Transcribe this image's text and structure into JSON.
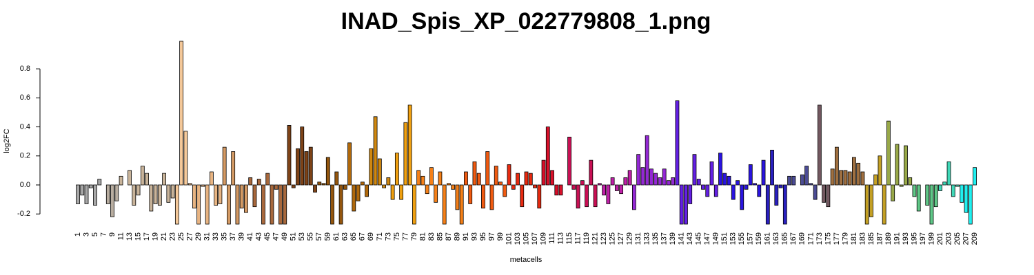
{
  "chart_data": {
    "type": "bar",
    "title": "INAD_Spis_XP_022779808_1.png",
    "x_label": "metacells",
    "y_label": "log2FC",
    "categories": [
      "1",
      null,
      "3",
      null,
      "5",
      null,
      "7",
      null,
      "9",
      null,
      "11",
      null,
      "13",
      null,
      "15",
      null,
      "17",
      null,
      "19",
      null,
      "21",
      null,
      "23",
      null,
      "25",
      null,
      "27",
      null,
      "29",
      null,
      "31",
      null,
      "33",
      null,
      "35",
      null,
      "37",
      null,
      "39",
      null,
      "41",
      null,
      "43",
      null,
      "45",
      null,
      "47",
      null,
      "49",
      null,
      "51",
      null,
      "53",
      null,
      "55",
      null,
      "57",
      null,
      "59",
      null,
      "61",
      null,
      "63",
      null,
      "65",
      null,
      "67",
      null,
      "69",
      null,
      "71",
      null,
      "73",
      null,
      "75",
      null,
      "77",
      null,
      "79",
      null,
      "81",
      null,
      "83",
      null,
      "85",
      null,
      "87",
      null,
      "89",
      null,
      "91",
      null,
      "93",
      null,
      "95",
      null,
      "97",
      null,
      "99",
      null,
      "101",
      null,
      "103",
      null,
      "105",
      null,
      "107",
      null,
      "109",
      null,
      "111",
      null,
      "113",
      null,
      "115",
      null,
      "117",
      null,
      "119",
      null,
      "121",
      null,
      "123",
      null,
      "125",
      null,
      "127",
      null,
      "129",
      null,
      "131",
      null,
      "133",
      null,
      "135",
      null,
      "137",
      null,
      "139",
      null,
      "141",
      null,
      "143",
      null,
      "145",
      null,
      "147",
      null,
      "149",
      null,
      "151",
      null,
      "153",
      null,
      "155",
      null,
      "157",
      null,
      "159",
      null,
      "161",
      null,
      "163",
      null,
      "165",
      null,
      "167",
      null,
      "169",
      null,
      "171",
      null,
      "173",
      null,
      "175",
      null,
      "177",
      null,
      "179",
      null,
      "181",
      null,
      "183",
      null,
      "185",
      null,
      "187",
      null,
      "189",
      null,
      "191",
      null,
      "193",
      null,
      "195",
      null,
      "197",
      null,
      "199",
      null,
      "201",
      null,
      "203",
      null,
      "205",
      null,
      "207",
      null,
      "209"
    ],
    "values": [
      -0.13,
      -0.07,
      -0.13,
      -0.02,
      -0.14,
      0.04,
      0.0,
      -0.13,
      -0.22,
      -0.11,
      0.06,
      0.0,
      0.1,
      -0.14,
      -0.07,
      0.13,
      0.08,
      -0.18,
      -0.13,
      -0.14,
      0.08,
      -0.12,
      -0.09,
      -0.27,
      0.99,
      0.37,
      0.01,
      -0.16,
      -0.27,
      -0.01,
      -0.27,
      0.09,
      -0.14,
      -0.13,
      0.26,
      -0.27,
      0.23,
      -0.27,
      -0.16,
      -0.19,
      0.05,
      -0.15,
      0.04,
      -0.27,
      0.08,
      -0.27,
      -0.03,
      -0.27,
      -0.27,
      0.41,
      -0.02,
      0.25,
      0.4,
      0.23,
      0.26,
      -0.05,
      0.02,
      0.01,
      0.19,
      -0.27,
      0.09,
      -0.27,
      -0.03,
      0.29,
      -0.18,
      -0.11,
      0.02,
      -0.08,
      0.25,
      0.47,
      0.18,
      -0.02,
      0.05,
      -0.1,
      0.22,
      -0.1,
      0.43,
      0.55,
      -0.27,
      0.1,
      0.06,
      -0.06,
      0.12,
      -0.12,
      0.09,
      -0.27,
      0.01,
      -0.03,
      -0.17,
      -0.27,
      0.09,
      -0.13,
      0.16,
      0.08,
      -0.16,
      0.23,
      -0.17,
      0.13,
      0.02,
      -0.08,
      0.14,
      -0.03,
      0.08,
      -0.15,
      0.09,
      0.08,
      -0.02,
      -0.16,
      0.17,
      0.4,
      0.1,
      -0.07,
      -0.07,
      0.0,
      0.33,
      -0.03,
      -0.16,
      0.03,
      -0.15,
      0.17,
      -0.15,
      0.01,
      -0.07,
      -0.13,
      0.05,
      -0.04,
      -0.06,
      0.05,
      0.1,
      -0.17,
      0.21,
      0.12,
      0.34,
      0.11,
      0.08,
      0.05,
      0.11,
      0.03,
      0.05,
      0.58,
      -0.27,
      -0.27,
      -0.13,
      0.21,
      0.04,
      -0.03,
      -0.08,
      0.16,
      -0.08,
      0.22,
      0.08,
      0.06,
      -0.1,
      0.03,
      -0.17,
      -0.03,
      0.14,
      0.01,
      -0.08,
      0.17,
      -0.27,
      0.24,
      -0.14,
      -0.02,
      -0.27,
      0.06,
      0.06,
      0.0,
      0.07,
      0.13,
      0.01,
      -0.1,
      0.55,
      -0.12,
      -0.15,
      0.11,
      0.26,
      0.1,
      0.1,
      0.09,
      0.19,
      0.15,
      0.09,
      -0.27,
      -0.22,
      0.07,
      0.2,
      -0.27,
      0.44,
      -0.11,
      0.28,
      -0.01,
      0.27,
      0.05,
      -0.08,
      -0.18,
      0.0,
      -0.14,
      -0.27,
      -0.15,
      -0.04,
      0.02,
      0.16,
      -0.08,
      -0.01,
      -0.12,
      -0.19,
      -0.27,
      0.12
    ],
    "colors": [
      "#a8a8a8",
      "#a8a8a8",
      "#a8a8a8",
      "#a8a8a8",
      "#a8a8a8",
      "#a8a8a8",
      "#b8ada0",
      "#b8ada0",
      "#b8ada0",
      "#b8ada0",
      "#c9b49a",
      "#c9b49a",
      "#c9b49a",
      "#c9b49a",
      "#c9b49a",
      "#c9b49a",
      "#c9b49a",
      "#c9b49a",
      "#c9b49a",
      "#c9b49a",
      "#c9b49a",
      "#c9b49a",
      "#c9b49a",
      "#f5c99a",
      "#f5c99a",
      "#f5c99a",
      "#e8b482",
      "#e8b482",
      "#e8b482",
      "#e8b482",
      "#e8b482",
      "#e8b482",
      "#e8b482",
      "#e8b482",
      "#d49a64",
      "#d49a64",
      "#d49a64",
      "#d49a64",
      "#d49a64",
      "#d49a64",
      "#a8683c",
      "#a8683c",
      "#a8683c",
      "#a8683c",
      "#a8683c",
      "#a8683c",
      "#a8683c",
      "#a8683c",
      "#a8683c",
      "#7e4318",
      "#7e4318",
      "#7e4318",
      "#7e4318",
      "#7e4318",
      "#7e4318",
      "#7e4318",
      "#94560e",
      "#94560e",
      "#94560e",
      "#94560e",
      "#94560e",
      "#94560e",
      "#94560e",
      "#b0680a",
      "#b0680a",
      "#b0680a",
      "#b0680a",
      "#b0680a",
      "#d08810",
      "#d08810",
      "#d08810",
      "#d08810",
      "#d08810",
      "#f0a010",
      "#f0a010",
      "#f0a010",
      "#f0a010",
      "#f0a010",
      "#f0a010",
      "#f58018",
      "#f58018",
      "#f58018",
      "#f58018",
      "#f58018",
      "#f58018",
      "#f58018",
      "#f58018",
      "#f58018",
      "#f58018",
      "#f58018",
      "#f05a10",
      "#f05a10",
      "#f05a10",
      "#f05a10",
      "#f05a10",
      "#f05a10",
      "#f05a10",
      "#f05a10",
      "#f05a10",
      "#f05a10",
      "#e82a10",
      "#e82a10",
      "#e82a10",
      "#e82a10",
      "#e82a10",
      "#e82a10",
      "#e82a10",
      "#e82a10",
      "#d8102a",
      "#d8102a",
      "#d8102a",
      "#d8102a",
      "#d8102a",
      "#d8102a",
      "#c81054",
      "#c81054",
      "#c81054",
      "#c81054",
      "#c81054",
      "#c81054",
      "#c81054",
      "#c020a8",
      "#c020a8",
      "#c020a8",
      "#c020a8",
      "#c020a8",
      "#c020a8",
      "#c020a8",
      "#c020a8",
      "#9428d4",
      "#9428d4",
      "#9428d4",
      "#9428d4",
      "#9428d4",
      "#9428d4",
      "#9428d4",
      "#9428d4",
      "#9428d4",
      "#9428d4",
      "#6420e4",
      "#6420e4",
      "#6420e4",
      "#6420e4",
      "#6420e4",
      "#6420e4",
      "#6420e4",
      "#6420e4",
      "#6420e4",
      "#6420e4",
      "#2a14e0",
      "#2a14e0",
      "#2a14e0",
      "#2a14e0",
      "#2a14e0",
      "#2a14e0",
      "#2a14e0",
      "#2a14e0",
      "#2a14e0",
      "#2a14e0",
      "#2a14e0",
      "#2a20c0",
      "#2a20c0",
      "#2a20c0",
      "#2a20c0",
      "#2a20c0",
      "#4c4c94",
      "#4c4c94",
      "#4c4c94",
      "#4c4c94",
      "#4c4c94",
      "#4c4c94",
      "#4c4c94",
      "#735860",
      "#735860",
      "#735860",
      "#a07040",
      "#a07040",
      "#a07040",
      "#a07040",
      "#a07040",
      "#a07040",
      "#a07040",
      "#a07040",
      "#c4a024",
      "#c4a024",
      "#c4a024",
      "#c4a024",
      "#c4a024",
      "#98a848",
      "#98a848",
      "#98a848",
      "#98a848",
      "#98a848",
      "#98a848",
      "#60c888",
      "#60c888",
      "#60c888",
      "#60c888",
      "#60c888",
      "#60c888",
      "#40d8b8",
      "#40d8b8",
      "#40d8b8",
      "#40d8b8",
      "#40d8b8",
      "#20f0f0",
      "#20f0f0",
      "#20f0f0",
      "#20f0f0"
    ],
    "ylim": [
      -0.27,
      0.99
    ],
    "yticks": [
      -0.2,
      {
        "value": 0,
        "label": "0.0"
      },
      0.2,
      0.4,
      0.6,
      0.8
    ]
  }
}
